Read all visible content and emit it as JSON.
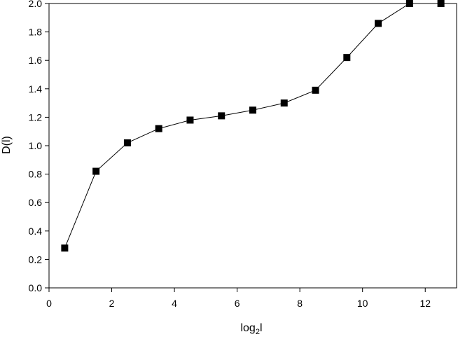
{
  "chart_data": {
    "type": "line",
    "title": "",
    "xlabel_main": "log",
    "xlabel_sub": "2",
    "xlabel_tail": "l",
    "ylabel": "D(l)",
    "xlim": [
      0,
      13
    ],
    "ylim": [
      0.0,
      2.0
    ],
    "x_ticks": [
      0,
      2,
      4,
      6,
      8,
      10,
      12
    ],
    "x_tick_labels": [
      "0",
      "2",
      "4",
      "6",
      "8",
      "10",
      "12"
    ],
    "y_ticks": [
      0.0,
      0.2,
      0.4,
      0.6,
      0.8,
      1.0,
      1.2,
      1.4,
      1.6,
      1.8,
      2.0
    ],
    "y_tick_labels": [
      "0.0",
      "0.2",
      "0.4",
      "0.6",
      "0.8",
      "1.0",
      "1.2",
      "1.4",
      "1.6",
      "1.8",
      "2.0"
    ],
    "grid": false,
    "marker": "square",
    "color": "#000000",
    "series": [
      {
        "x": [
          0.5,
          1.5,
          2.5,
          3.5,
          4.5,
          5.5,
          6.5,
          7.5,
          8.5,
          9.5,
          10.5,
          11.5,
          12.5
        ],
        "y": [
          0.28,
          0.82,
          1.02,
          1.12,
          1.18,
          1.21,
          1.25,
          1.3,
          1.39,
          1.62,
          1.86,
          2.0,
          2.0
        ]
      }
    ]
  }
}
